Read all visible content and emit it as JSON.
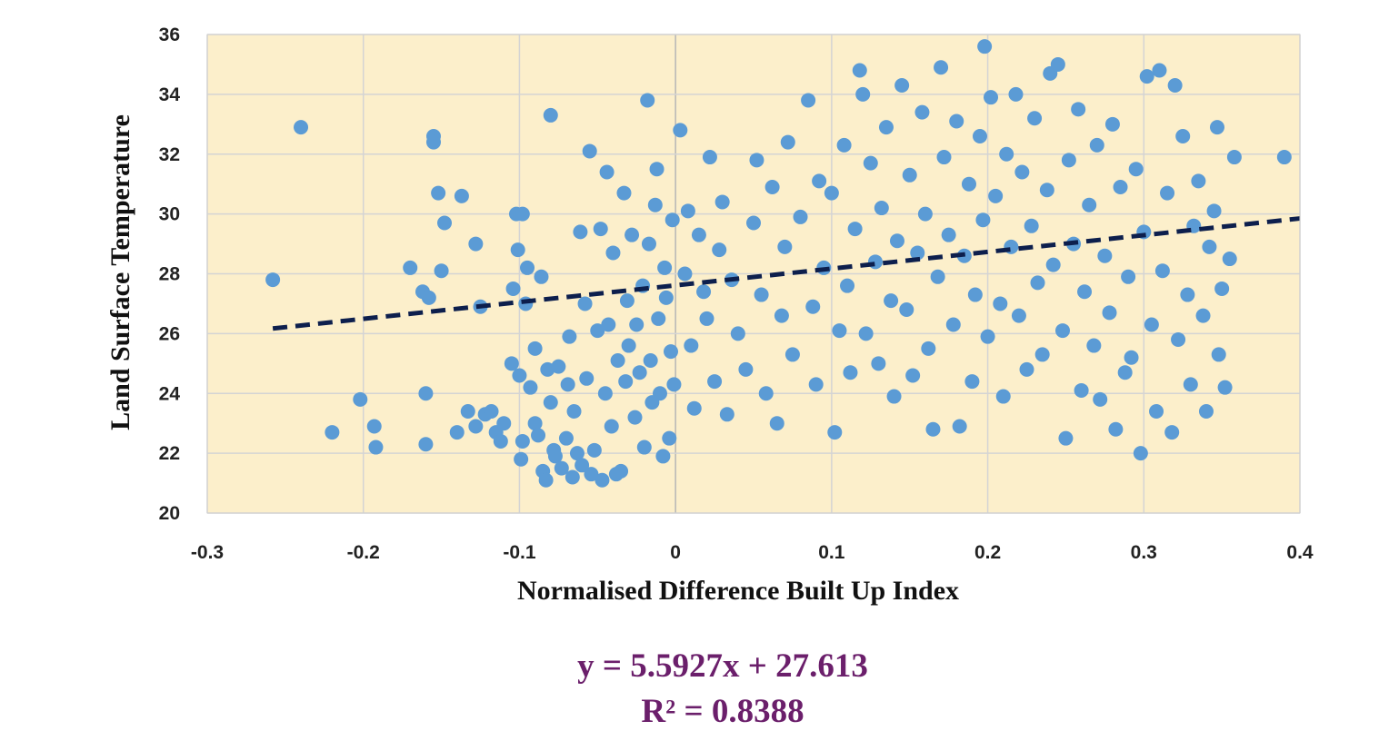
{
  "chart_data": {
    "type": "scatter",
    "title": "",
    "xlabel": "Normalised Difference Built Up Index",
    "ylabel": "Land Surface Temperature",
    "xlim": [
      -0.3,
      0.4
    ],
    "ylim": [
      20,
      36
    ],
    "x_ticks": [
      "-0.3",
      "-0.2",
      "-0.1",
      "0",
      "0.1",
      "0.2",
      "0.3",
      "0.4"
    ],
    "y_ticks": [
      "20",
      "22",
      "24",
      "26",
      "28",
      "30",
      "32",
      "34",
      "36"
    ],
    "grid": true,
    "legend": "none",
    "colors": {
      "plot_background": "#fcefcb",
      "grid": "#d4d4d4",
      "points": "#5b9bd5",
      "trendline": "#0d1f4d",
      "equation_text": "#6b1f6b"
    },
    "series": [
      {
        "points": [
          [
            -0.258,
            27.8
          ],
          [
            -0.24,
            32.9
          ],
          [
            -0.22,
            22.7
          ],
          [
            -0.202,
            23.8
          ],
          [
            -0.193,
            22.9
          ],
          [
            -0.192,
            22.2
          ],
          [
            -0.17,
            28.2
          ],
          [
            -0.162,
            27.4
          ],
          [
            -0.16,
            22.3
          ],
          [
            -0.16,
            24.0
          ],
          [
            -0.158,
            27.2
          ],
          [
            -0.155,
            32.6
          ],
          [
            -0.155,
            32.4
          ],
          [
            -0.152,
            30.7
          ],
          [
            -0.15,
            28.1
          ],
          [
            -0.148,
            29.7
          ],
          [
            -0.14,
            22.7
          ],
          [
            -0.137,
            30.6
          ],
          [
            -0.133,
            23.4
          ],
          [
            -0.128,
            22.9
          ],
          [
            -0.128,
            29.0
          ],
          [
            -0.125,
            26.9
          ],
          [
            -0.122,
            23.3
          ],
          [
            -0.118,
            23.4
          ],
          [
            -0.115,
            22.7
          ],
          [
            -0.112,
            22.4
          ],
          [
            -0.11,
            23.0
          ],
          [
            -0.105,
            25.0
          ],
          [
            -0.104,
            27.5
          ],
          [
            -0.102,
            30.0
          ],
          [
            -0.101,
            28.8
          ],
          [
            -0.1,
            24.6
          ],
          [
            -0.099,
            21.8
          ],
          [
            -0.098,
            30.0
          ],
          [
            -0.098,
            22.4
          ],
          [
            -0.096,
            27.0
          ],
          [
            -0.095,
            28.2
          ],
          [
            -0.093,
            24.2
          ],
          [
            -0.09,
            23.0
          ],
          [
            -0.09,
            25.5
          ],
          [
            -0.088,
            22.6
          ],
          [
            -0.086,
            27.9
          ],
          [
            -0.085,
            21.4
          ],
          [
            -0.083,
            21.1
          ],
          [
            -0.082,
            24.8
          ],
          [
            -0.08,
            33.3
          ],
          [
            -0.08,
            23.7
          ],
          [
            -0.078,
            22.1
          ],
          [
            -0.077,
            21.9
          ],
          [
            -0.075,
            24.9
          ],
          [
            -0.073,
            21.5
          ],
          [
            -0.07,
            22.5
          ],
          [
            -0.069,
            24.3
          ],
          [
            -0.068,
            25.9
          ],
          [
            -0.066,
            21.2
          ],
          [
            -0.065,
            23.4
          ],
          [
            -0.063,
            22.0
          ],
          [
            -0.061,
            29.4
          ],
          [
            -0.06,
            21.6
          ],
          [
            -0.058,
            27.0
          ],
          [
            -0.057,
            24.5
          ],
          [
            -0.055,
            32.1
          ],
          [
            -0.054,
            21.3
          ],
          [
            -0.052,
            22.1
          ],
          [
            -0.05,
            26.1
          ],
          [
            -0.048,
            29.5
          ],
          [
            -0.047,
            21.1
          ],
          [
            -0.045,
            24.0
          ],
          [
            -0.044,
            31.4
          ],
          [
            -0.043,
            26.3
          ],
          [
            -0.041,
            22.9
          ],
          [
            -0.04,
            28.7
          ],
          [
            -0.038,
            21.3
          ],
          [
            -0.037,
            25.1
          ],
          [
            -0.035,
            21.4
          ],
          [
            -0.033,
            30.7
          ],
          [
            -0.032,
            24.4
          ],
          [
            -0.031,
            27.1
          ],
          [
            -0.03,
            25.6
          ],
          [
            -0.028,
            29.3
          ],
          [
            -0.026,
            23.2
          ],
          [
            -0.025,
            26.3
          ],
          [
            -0.023,
            24.7
          ],
          [
            -0.021,
            27.6
          ],
          [
            -0.02,
            22.2
          ],
          [
            -0.018,
            33.8
          ],
          [
            -0.017,
            29.0
          ],
          [
            -0.016,
            25.1
          ],
          [
            -0.015,
            23.7
          ],
          [
            -0.013,
            30.3
          ],
          [
            -0.012,
            31.5
          ],
          [
            -0.011,
            26.5
          ],
          [
            -0.01,
            24.0
          ],
          [
            -0.008,
            21.9
          ],
          [
            -0.007,
            28.2
          ],
          [
            -0.006,
            27.2
          ],
          [
            -0.004,
            22.5
          ],
          [
            -0.003,
            25.4
          ],
          [
            -0.002,
            29.8
          ],
          [
            -0.001,
            24.3
          ],
          [
            0.003,
            32.8
          ],
          [
            0.006,
            28.0
          ],
          [
            0.008,
            30.1
          ],
          [
            0.01,
            25.6
          ],
          [
            0.012,
            23.5
          ],
          [
            0.015,
            29.3
          ],
          [
            0.018,
            27.4
          ],
          [
            0.02,
            26.5
          ],
          [
            0.022,
            31.9
          ],
          [
            0.025,
            24.4
          ],
          [
            0.028,
            28.8
          ],
          [
            0.03,
            30.4
          ],
          [
            0.033,
            23.3
          ],
          [
            0.036,
            27.8
          ],
          [
            0.04,
            26.0
          ],
          [
            0.045,
            24.8
          ],
          [
            0.05,
            29.7
          ],
          [
            0.052,
            31.8
          ],
          [
            0.055,
            27.3
          ],
          [
            0.058,
            24.0
          ],
          [
            0.062,
            30.9
          ],
          [
            0.065,
            23.0
          ],
          [
            0.068,
            26.6
          ],
          [
            0.07,
            28.9
          ],
          [
            0.072,
            32.4
          ],
          [
            0.075,
            25.3
          ],
          [
            0.08,
            29.9
          ],
          [
            0.085,
            33.8
          ],
          [
            0.088,
            26.9
          ],
          [
            0.09,
            24.3
          ],
          [
            0.092,
            31.1
          ],
          [
            0.095,
            28.2
          ],
          [
            0.1,
            30.7
          ],
          [
            0.102,
            22.7
          ],
          [
            0.105,
            26.1
          ],
          [
            0.108,
            32.3
          ],
          [
            0.11,
            27.6
          ],
          [
            0.112,
            24.7
          ],
          [
            0.115,
            29.5
          ],
          [
            0.118,
            34.8
          ],
          [
            0.12,
            34.0
          ],
          [
            0.122,
            26.0
          ],
          [
            0.125,
            31.7
          ],
          [
            0.128,
            28.4
          ],
          [
            0.13,
            25.0
          ],
          [
            0.132,
            30.2
          ],
          [
            0.135,
            32.9
          ],
          [
            0.138,
            27.1
          ],
          [
            0.14,
            23.9
          ],
          [
            0.142,
            29.1
          ],
          [
            0.145,
            34.3
          ],
          [
            0.148,
            26.8
          ],
          [
            0.15,
            31.3
          ],
          [
            0.152,
            24.6
          ],
          [
            0.155,
            28.7
          ],
          [
            0.158,
            33.4
          ],
          [
            0.16,
            30.0
          ],
          [
            0.162,
            25.5
          ],
          [
            0.165,
            22.8
          ],
          [
            0.168,
            27.9
          ],
          [
            0.17,
            34.9
          ],
          [
            0.172,
            31.9
          ],
          [
            0.175,
            29.3
          ],
          [
            0.178,
            26.3
          ],
          [
            0.18,
            33.1
          ],
          [
            0.182,
            22.9
          ],
          [
            0.185,
            28.6
          ],
          [
            0.188,
            31.0
          ],
          [
            0.19,
            24.4
          ],
          [
            0.192,
            27.3
          ],
          [
            0.195,
            32.6
          ],
          [
            0.197,
            29.8
          ],
          [
            0.198,
            35.6
          ],
          [
            0.2,
            25.9
          ],
          [
            0.202,
            33.9
          ],
          [
            0.205,
            30.6
          ],
          [
            0.208,
            27.0
          ],
          [
            0.21,
            23.9
          ],
          [
            0.212,
            32.0
          ],
          [
            0.215,
            28.9
          ],
          [
            0.218,
            34.0
          ],
          [
            0.22,
            26.6
          ],
          [
            0.222,
            31.4
          ],
          [
            0.225,
            24.8
          ],
          [
            0.228,
            29.6
          ],
          [
            0.23,
            33.2
          ],
          [
            0.232,
            27.7
          ],
          [
            0.235,
            25.3
          ],
          [
            0.238,
            30.8
          ],
          [
            0.24,
            34.7
          ],
          [
            0.242,
            28.3
          ],
          [
            0.245,
            35.0
          ],
          [
            0.248,
            26.1
          ],
          [
            0.25,
            22.5
          ],
          [
            0.252,
            31.8
          ],
          [
            0.255,
            29.0
          ],
          [
            0.258,
            33.5
          ],
          [
            0.26,
            24.1
          ],
          [
            0.262,
            27.4
          ],
          [
            0.265,
            30.3
          ],
          [
            0.268,
            25.6
          ],
          [
            0.27,
            32.3
          ],
          [
            0.272,
            23.8
          ],
          [
            0.275,
            28.6
          ],
          [
            0.278,
            26.7
          ],
          [
            0.28,
            33.0
          ],
          [
            0.282,
            22.8
          ],
          [
            0.285,
            30.9
          ],
          [
            0.288,
            24.7
          ],
          [
            0.29,
            27.9
          ],
          [
            0.292,
            25.2
          ],
          [
            0.295,
            31.5
          ],
          [
            0.298,
            22.0
          ],
          [
            0.3,
            29.4
          ],
          [
            0.302,
            34.6
          ],
          [
            0.305,
            26.3
          ],
          [
            0.308,
            23.4
          ],
          [
            0.31,
            34.8
          ],
          [
            0.312,
            28.1
          ],
          [
            0.315,
            30.7
          ],
          [
            0.318,
            22.7
          ],
          [
            0.32,
            34.3
          ],
          [
            0.322,
            25.8
          ],
          [
            0.325,
            32.6
          ],
          [
            0.328,
            27.3
          ],
          [
            0.33,
            24.3
          ],
          [
            0.332,
            29.6
          ],
          [
            0.335,
            31.1
          ],
          [
            0.338,
            26.6
          ],
          [
            0.34,
            23.4
          ],
          [
            0.342,
            28.9
          ],
          [
            0.345,
            30.1
          ],
          [
            0.347,
            32.9
          ],
          [
            0.348,
            25.3
          ],
          [
            0.35,
            27.5
          ],
          [
            0.352,
            24.2
          ],
          [
            0.355,
            28.5
          ],
          [
            0.358,
            31.9
          ],
          [
            0.39,
            31.9
          ]
        ]
      }
    ],
    "trendline": {
      "slope": 5.5927,
      "intercept": 27.613,
      "x_range": [
        -0.258,
        0.4
      ],
      "style": "dashed",
      "equation": "y = 5.5927x + 27.613",
      "r_squared": "R² = 0.8388"
    }
  }
}
